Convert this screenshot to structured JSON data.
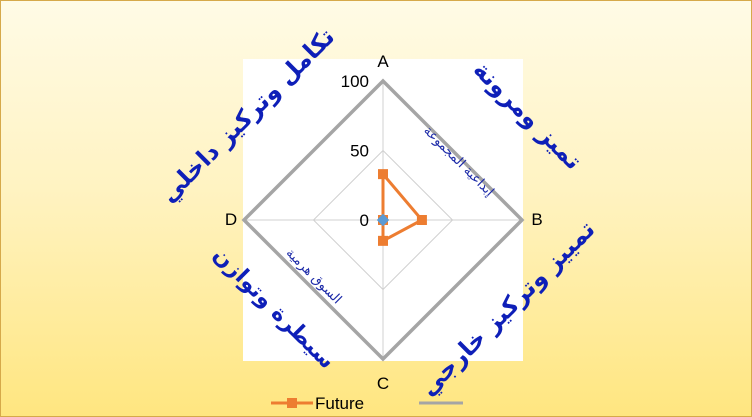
{
  "chart_data": {
    "type": "radar",
    "categories": [
      "A",
      "B",
      "C",
      "D"
    ],
    "rlim": [
      0,
      100
    ],
    "ticks": [
      0,
      50,
      100
    ],
    "tick_labels": [
      "0",
      "50",
      "100"
    ],
    "series": [
      {
        "name": "Future",
        "values": [
          33,
          28,
          15,
          0
        ],
        "color": "#ed7d31",
        "marker": "square"
      },
      {
        "name": "",
        "values": [
          100,
          100,
          100,
          100
        ],
        "color": "#a5a5a5",
        "marker": "none"
      },
      {
        "name": "",
        "values": [
          0,
          0,
          0,
          0
        ],
        "color": "#5b9bd5",
        "marker": "diamond"
      }
    ],
    "legend": {
      "position": "bottom",
      "entries": [
        "Future",
        ""
      ]
    },
    "grid": true
  },
  "quadrant_labels": {
    "top_left": "تكامل وتركيز داخلي",
    "top_right": "تميز ومرونة",
    "bottom_right": "تمييز وتركيز خارجي",
    "bottom_left": "سيطرة وتوازن"
  },
  "inner_labels": {
    "top_right": "إبداعية المجموعة",
    "bottom_left": "السوق هرمية"
  },
  "colors": {
    "frame_border": "#d6a94a",
    "quadrant_text": "#0e1fb8",
    "future": "#ed7d31",
    "outline": "#a5a5a5",
    "center": "#5b9bd5"
  }
}
